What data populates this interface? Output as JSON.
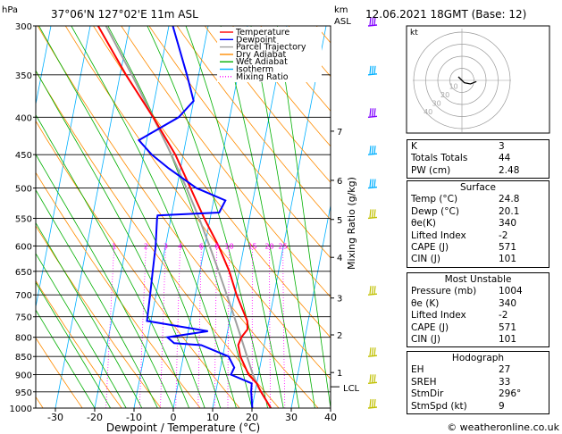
{
  "header": {
    "location": "37°06'N  127°02'E  11m  ASL",
    "datetime": "12.06.2021  18GMT  (Base: 12)",
    "hpa_label": "hPa",
    "km_label": "km",
    "asl_label": "ASL",
    "xlabel": "Dewpoint / Temperature (°C)",
    "mixing_label": "Mixing Ratio (g/kg)",
    "lcl_label": "LCL",
    "credit": "© weatheronline.co.uk"
  },
  "chart_data": {
    "type": "line",
    "pressure_ticks": [
      300,
      350,
      400,
      450,
      500,
      550,
      600,
      650,
      700,
      750,
      800,
      850,
      900,
      950,
      1000
    ],
    "pressure_range": [
      300,
      1000
    ],
    "temperature_ticks": [
      -30,
      -20,
      -10,
      0,
      10,
      20,
      30,
      40
    ],
    "temperature_range": [
      -35,
      40
    ],
    "km_ticks": [
      {
        "label": "7",
        "p": 418
      },
      {
        "label": "6",
        "p": 488
      },
      {
        "label": "5",
        "p": 552
      },
      {
        "label": "4",
        "p": 622
      },
      {
        "label": "3",
        "p": 707
      },
      {
        "label": "2",
        "p": 794
      },
      {
        "label": "1",
        "p": 894
      }
    ],
    "lcl_pressure": 935,
    "mixing_ratio_labels": [
      "1",
      "2",
      "3",
      "4",
      "6",
      "8",
      "10",
      "15",
      "20",
      "25"
    ],
    "mixing_ratio_values": [
      1,
      2,
      3,
      4,
      6,
      8,
      10,
      15,
      20,
      25
    ],
    "legend": [
      {
        "name": "Temperature",
        "color": "#ff0000",
        "dash": "solid"
      },
      {
        "name": "Dewpoint",
        "color": "#0000ff",
        "dash": "solid"
      },
      {
        "name": "Parcel Trajectory",
        "color": "#a0a0a0",
        "dash": "solid"
      },
      {
        "name": "Dry Adiabat",
        "color": "#ff8c00",
        "dash": "solid"
      },
      {
        "name": "Wet Adiabat",
        "color": "#00b000",
        "dash": "solid"
      },
      {
        "name": "Isotherm",
        "color": "#00b0ff",
        "dash": "solid"
      },
      {
        "name": "Mixing Ratio",
        "color": "#ff00ff",
        "dash": "dotted"
      }
    ],
    "series": [
      {
        "name": "Temperature",
        "color": "#ff0000",
        "points": [
          [
            1000,
            24.8
          ],
          [
            950,
            21.5
          ],
          [
            925,
            20
          ],
          [
            900,
            17.5
          ],
          [
            850,
            14.5
          ],
          [
            820,
            13.4
          ],
          [
            800,
            13.8
          ],
          [
            780,
            15
          ],
          [
            760,
            14.5
          ],
          [
            700,
            10.5
          ],
          [
            650,
            7.5
          ],
          [
            600,
            3.5
          ],
          [
            550,
            -1.5
          ],
          [
            500,
            -6.5
          ],
          [
            450,
            -12
          ],
          [
            400,
            -19.5
          ],
          [
            350,
            -28.5
          ],
          [
            300,
            -38
          ]
        ]
      },
      {
        "name": "Dewpoint",
        "color": "#0000ff",
        "points": [
          [
            1000,
            20.1
          ],
          [
            950,
            19
          ],
          [
            925,
            18.7
          ],
          [
            900,
            13
          ],
          [
            880,
            13.5
          ],
          [
            850,
            11.5
          ],
          [
            820,
            4
          ],
          [
            815,
            -3
          ],
          [
            800,
            -5
          ],
          [
            785,
            5
          ],
          [
            760,
            -11
          ],
          [
            700,
            -11.5
          ],
          [
            650,
            -12
          ],
          [
            600,
            -12.5
          ],
          [
            550,
            -13.5
          ],
          [
            545,
            -13.5
          ],
          [
            540,
            2
          ],
          [
            520,
            3
          ],
          [
            500,
            -5
          ],
          [
            470,
            -13
          ],
          [
            450,
            -18
          ],
          [
            430,
            -22
          ],
          [
            400,
            -13
          ],
          [
            380,
            -10
          ],
          [
            350,
            -13
          ],
          [
            300,
            -19
          ]
        ]
      },
      {
        "name": "Parcel Trajectory",
        "color": "#a0a0a0",
        "points": [
          [
            1000,
            24.8
          ],
          [
            935,
            20.5
          ],
          [
            900,
            18.6
          ],
          [
            850,
            16.2
          ],
          [
            800,
            13.7
          ],
          [
            750,
            11.0
          ],
          [
            700,
            8.0
          ],
          [
            650,
            4.8
          ],
          [
            600,
            1.2
          ],
          [
            550,
            -2.8
          ],
          [
            500,
            -7.5
          ],
          [
            450,
            -13
          ],
          [
            400,
            -19.5
          ],
          [
            350,
            -27
          ],
          [
            300,
            -36
          ]
        ]
      }
    ],
    "hodograph": {
      "rings": [
        "10",
        "20",
        "30",
        "40"
      ],
      "label": "kt",
      "points": [
        [
          0,
          0
        ],
        [
          -3,
          3
        ],
        [
          2,
          -2
        ],
        [
          7,
          -3
        ],
        [
          12,
          -1
        ]
      ]
    },
    "wind_barbs": [
      {
        "p": 300,
        "color": "#8000ff"
      },
      {
        "p": 350,
        "color": "#00b0ff"
      },
      {
        "p": 400,
        "color": "#8000ff"
      },
      {
        "p": 450,
        "color": "#00b0ff"
      },
      {
        "p": 500,
        "color": "#00b0ff"
      },
      {
        "p": 550,
        "color": "#c0c000"
      },
      {
        "p": 700,
        "color": "#c0c000"
      },
      {
        "p": 850,
        "color": "#c0c000"
      },
      {
        "p": 925,
        "color": "#c0c000"
      },
      {
        "p": 1000,
        "color": "#c0c000"
      }
    ]
  },
  "indices": {
    "rows": [
      {
        "label": "K",
        "value": "3"
      },
      {
        "label": "Totals Totals",
        "value": "44"
      },
      {
        "label": "PW (cm)",
        "value": "2.48"
      }
    ]
  },
  "surface": {
    "title": "Surface",
    "rows": [
      {
        "label": "Temp (°C)",
        "value": "24.8"
      },
      {
        "label": "Dewp (°C)",
        "value": "20.1"
      },
      {
        "label": "θe(K)",
        "value": "340"
      },
      {
        "label": "Lifted Index",
        "value": "-2"
      },
      {
        "label": "CAPE (J)",
        "value": "571"
      },
      {
        "label": "CIN (J)",
        "value": "101"
      }
    ]
  },
  "unstable": {
    "title": "Most Unstable",
    "rows": [
      {
        "label": "Pressure (mb)",
        "value": "1004"
      },
      {
        "label": "θe (K)",
        "value": "340"
      },
      {
        "label": "Lifted Index",
        "value": "-2"
      },
      {
        "label": "CAPE (J)",
        "value": "571"
      },
      {
        "label": "CIN (J)",
        "value": "101"
      }
    ]
  },
  "hodo_table": {
    "title": "Hodograph",
    "rows": [
      {
        "label": "EH",
        "value": "27"
      },
      {
        "label": "SREH",
        "value": "33"
      },
      {
        "label": "StmDir",
        "value": "296°"
      },
      {
        "label": "StmSpd (kt)",
        "value": "9"
      }
    ]
  }
}
